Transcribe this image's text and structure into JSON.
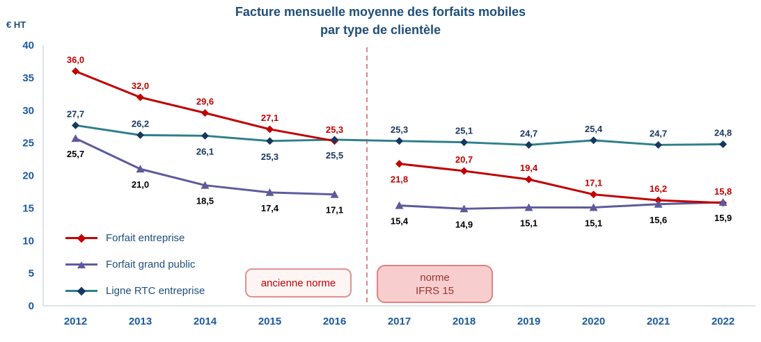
{
  "title": {
    "line1": "Facture mensuelle moyenne des forfaits mobiles",
    "line2": "par type de clientèle"
  },
  "colors": {
    "title": "#1F4E79",
    "axis_text": "#1C5AA0",
    "axis_line": "#BCC8D4",
    "legend_text": "#1F4E79",
    "background": "#FFFFFF"
  },
  "chart_data": {
    "type": "line",
    "ylabel": "€ HT",
    "xlabel": "",
    "categories": [
      "2012",
      "2013",
      "2014",
      "2015",
      "2016",
      "2017",
      "2018",
      "2019",
      "2020",
      "2021",
      "2022"
    ],
    "y_ticks": [
      0,
      5,
      10,
      15,
      20,
      25,
      30,
      35,
      40
    ],
    "ylim": [
      0,
      40
    ],
    "grid": false,
    "legend_position": "inside-bottom-left",
    "series": [
      {
        "name": "Forfait entreprise",
        "color": "#C00000",
        "marker": "diamond",
        "marker_color": "#C00000",
        "label_color": "#C00000",
        "gap_after_index": 4,
        "values": [
          36.0,
          32.0,
          29.6,
          27.1,
          25.3,
          21.8,
          20.7,
          19.4,
          17.1,
          16.2,
          15.8
        ],
        "labels": [
          "36,0",
          "32,0",
          "29,6",
          "27,1",
          "25,3",
          "21,8",
          "20,7",
          "19,4",
          "17,1",
          "16,2",
          "15,8"
        ],
        "label_offsets": [
          "above",
          "above",
          "above",
          "above",
          "above",
          "below",
          "above",
          "above",
          "above",
          "above",
          "above"
        ]
      },
      {
        "name": "Forfait grand public",
        "color": "#5D5A9C",
        "marker": "triangle",
        "marker_color": "#5D5A9C",
        "label_color": "#000000",
        "gap_after_index": 4,
        "values": [
          25.7,
          21.0,
          18.5,
          17.4,
          17.1,
          15.4,
          14.9,
          15.1,
          15.1,
          15.6,
          15.9
        ],
        "labels": [
          "25,7",
          "21,0",
          "18,5",
          "17,4",
          "17,1",
          "15,4",
          "14,9",
          "15,1",
          "15,1",
          "15,6",
          "15,9"
        ],
        "label_offsets": [
          "below",
          "below",
          "below",
          "below",
          "below",
          "below",
          "below",
          "below",
          "below",
          "below",
          "below"
        ]
      },
      {
        "name": "Ligne RTC entreprise",
        "color": "#2E7F8C",
        "marker": "diamond",
        "marker_color": "#17375E",
        "label_color": "#17375E",
        "gap_after_index": null,
        "values": [
          27.7,
          26.2,
          26.1,
          25.3,
          25.5,
          25.3,
          25.1,
          24.7,
          25.4,
          24.7,
          24.8
        ],
        "labels": [
          "27,7",
          "26,2",
          "26,1",
          "25,3",
          "25,5",
          "25,3",
          "25,1",
          "24,7",
          "25,4",
          "24,7",
          "24,8"
        ],
        "label_offsets": [
          "above",
          "above",
          "below",
          "below",
          "below",
          "above",
          "above",
          "above",
          "above",
          "above",
          "above"
        ]
      }
    ],
    "divider": {
      "between": [
        "2016",
        "2017"
      ],
      "color": "#E06666",
      "style": "dashed"
    },
    "annotations": [
      {
        "text": "ancienne norme",
        "fill": "#FDF4F4",
        "border": "#E29090",
        "text_color": "#C00000"
      },
      {
        "line1": "norme",
        "line2": "IFRS 15",
        "fill": "#F8CDCD",
        "border": "#DE8282",
        "text_color": "#943634"
      }
    ]
  }
}
